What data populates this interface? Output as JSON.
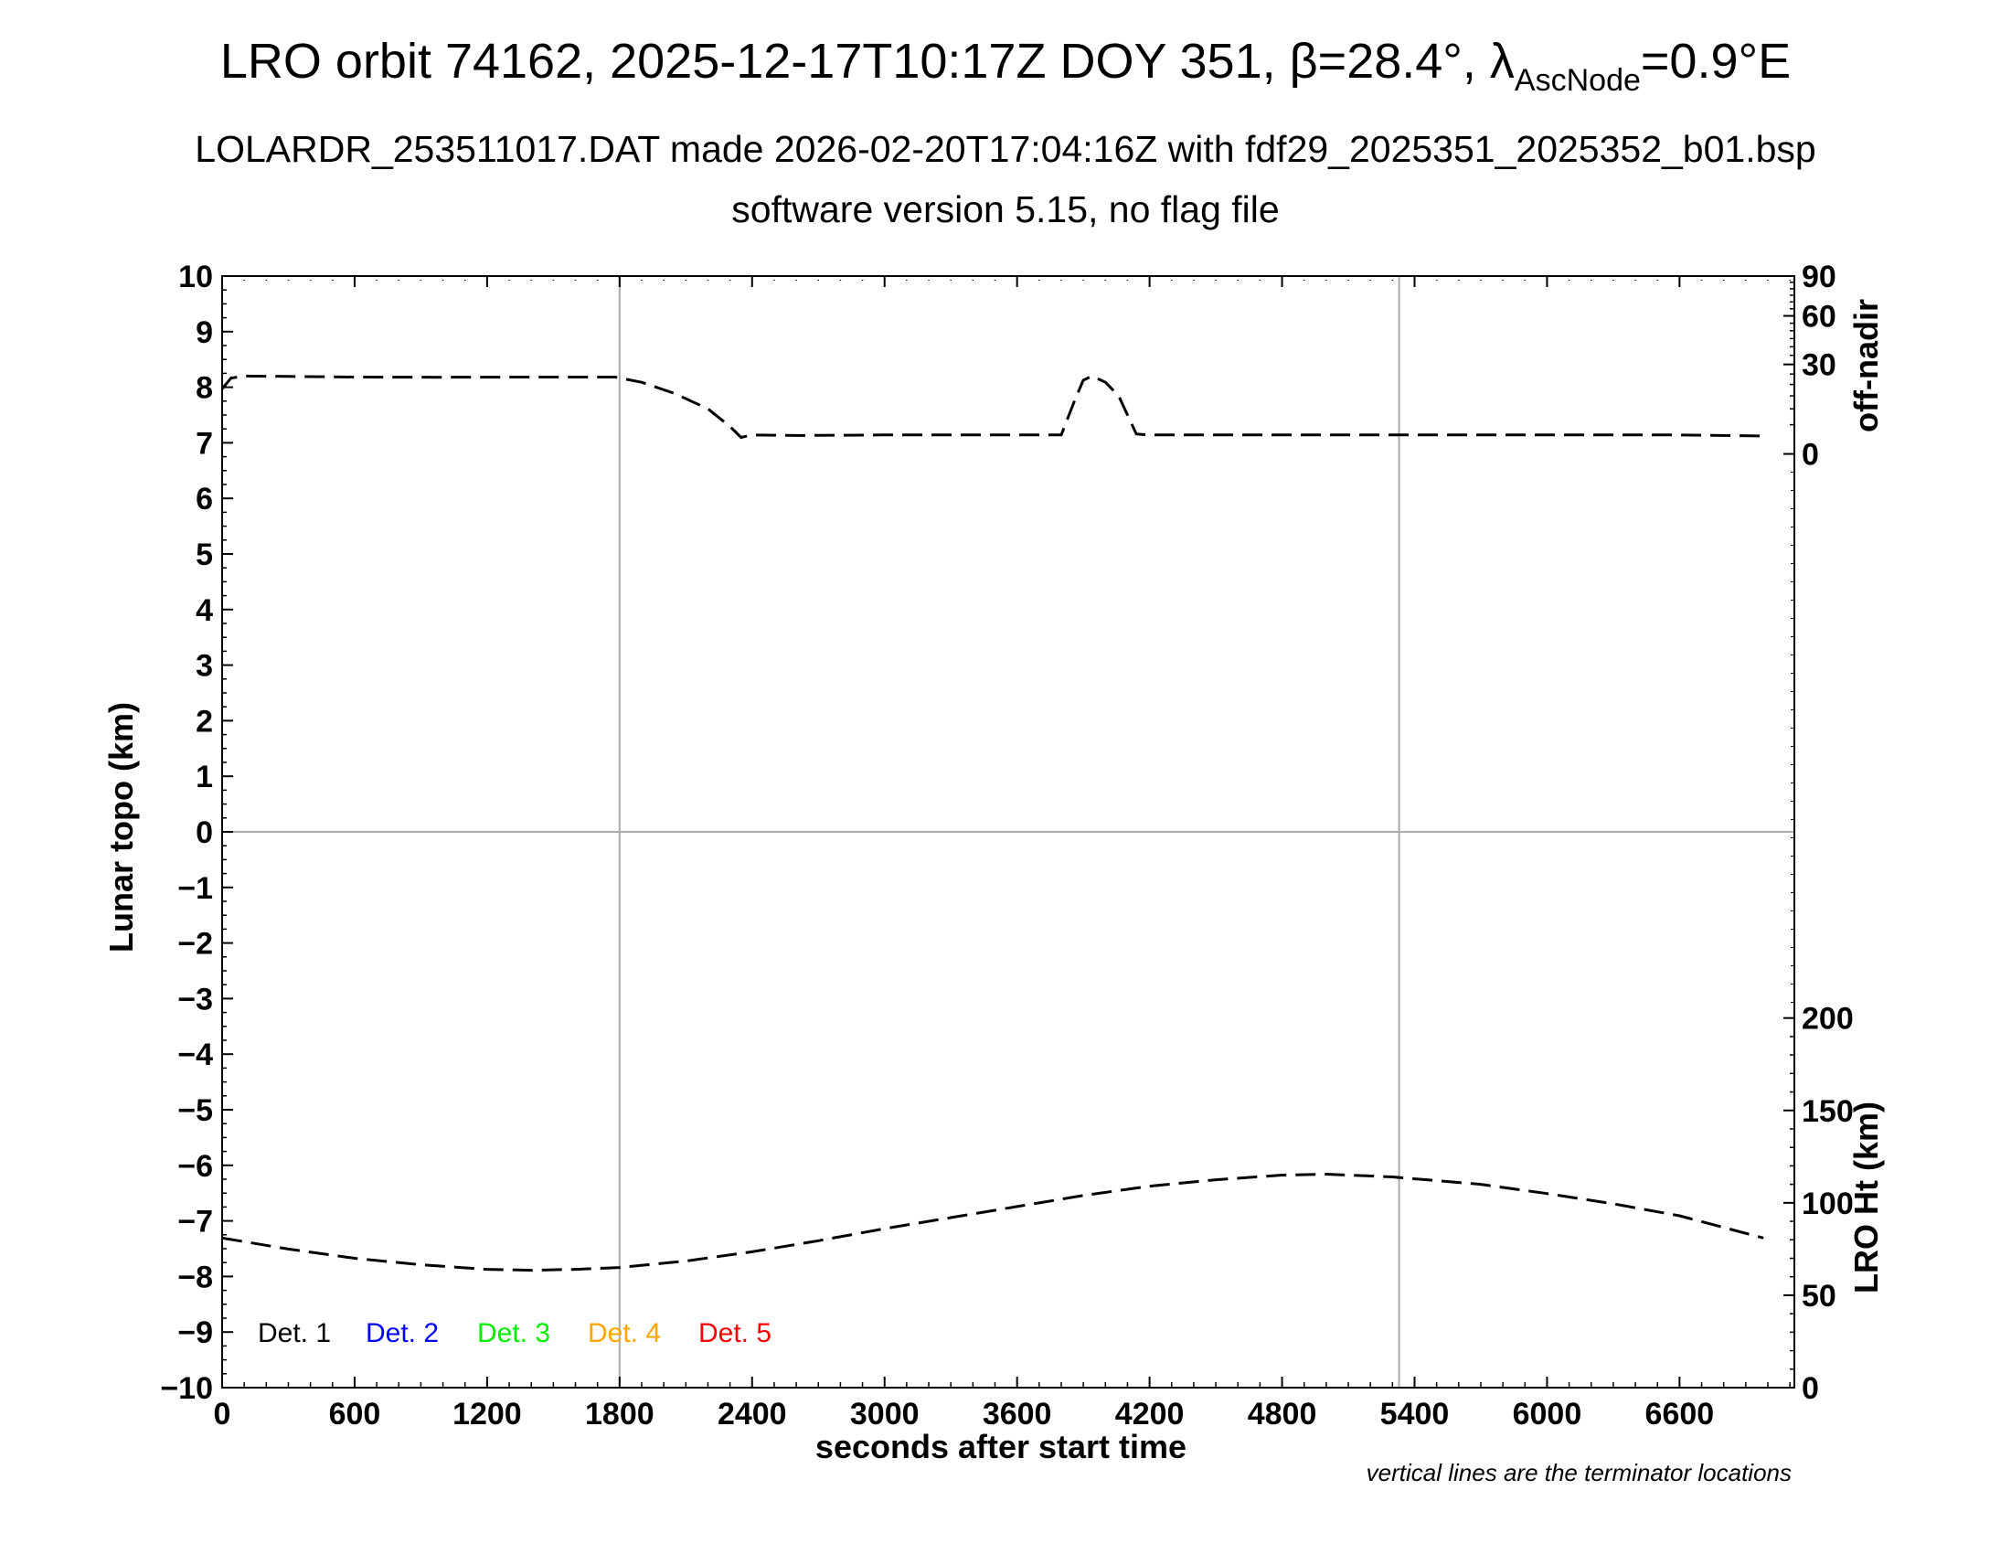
{
  "header": {
    "title_prefix": "LRO orbit 74162, 2025-12-17T10:17Z DOY 351, ",
    "beta_symbol": "β",
    "beta_value": "=28.4°, ",
    "lambda_symbol": "λ",
    "lambda_sub": "AscNode",
    "lambda_value": "=0.9°E",
    "subtitle1": "LOLARDR_253511017.DAT made 2026-02-20T17:04:16Z with fdf29_2025351_2025352_b01.bsp",
    "subtitle2": "software version 5.15, no flag file"
  },
  "footnote": "vertical lines are the terminator locations",
  "chart_data": {
    "type": "line",
    "xlabel": "seconds after start time",
    "ylabel_left": "Lunar topo (km)",
    "ylabel_right_top": "off-nadir",
    "ylabel_right_bottom": "LRO Ht (km)",
    "xlim": [
      0,
      7120
    ],
    "ylim": [
      -10,
      10
    ],
    "x_ticks": [
      "0",
      "600",
      "1200",
      "1800",
      "2400",
      "3000",
      "3600",
      "4200",
      "4800",
      "5400",
      "6000",
      "6600"
    ],
    "x_tick_values": [
      0,
      600,
      1200,
      1800,
      2400,
      3000,
      3600,
      4200,
      4800,
      5400,
      6000,
      6600
    ],
    "y_ticks": [
      "10",
      "9",
      "8",
      "7",
      "6",
      "5",
      "4",
      "3",
      "2",
      "1",
      "0",
      "−1",
      "−2",
      "−3",
      "−4",
      "−5",
      "−6",
      "−7",
      "−8",
      "−9",
      "−10"
    ],
    "y_tick_values": [
      10,
      9,
      8,
      7,
      6,
      5,
      4,
      3,
      2,
      1,
      0,
      -1,
      -2,
      -3,
      -4,
      -5,
      -6,
      -7,
      -8,
      -9,
      -10
    ],
    "right_top_ticks": [
      "90",
      "60",
      "30",
      "0"
    ],
    "right_top_tick_values": [
      90,
      60,
      30,
      0
    ],
    "right_bottom_ticks": [
      "200",
      "150",
      "100",
      "50",
      "0"
    ],
    "right_bottom_tick_values": [
      200,
      150,
      100,
      50,
      0
    ],
    "terminator_x": [
      1800,
      5330
    ],
    "zero_line_y": 0,
    "legend": [
      {
        "label": "Det. 1",
        "color": "#000000"
      },
      {
        "label": "Det. 2",
        "color": "#0000ff"
      },
      {
        "label": "Det. 3",
        "color": "#00ee00"
      },
      {
        "label": "Det. 4",
        "color": "#ffa500"
      },
      {
        "label": "Det. 5",
        "color": "#ff0000"
      }
    ],
    "series": [
      {
        "axis": "off-nadir",
        "x": [
          0,
          40,
          100,
          300,
          600,
          1000,
          1400,
          1780,
          1900,
          2050,
          2200,
          2300,
          2350,
          2400,
          2600,
          3000,
          3400,
          3800,
          3860,
          3900,
          3940,
          4000,
          4060,
          4100,
          4140,
          4200,
          4600,
          5000,
          5400,
          5800,
          6200,
          6600,
          6980
        ],
        "y": [
          18,
          23,
          24,
          23.8,
          23.5,
          23.4,
          23.5,
          23.5,
          21,
          16,
          10,
          4.5,
          2,
          2.5,
          2.4,
          2.5,
          2.5,
          2.5,
          13,
          22,
          24,
          21,
          15,
          8,
          2.7,
          2.5,
          2.5,
          2.5,
          2.5,
          2.5,
          2.5,
          2.5,
          2.3
        ]
      },
      {
        "axis": "LRO Ht (km)",
        "x": [
          0,
          300,
          600,
          900,
          1200,
          1400,
          1600,
          1800,
          2100,
          2400,
          2700,
          3000,
          3300,
          3600,
          3900,
          4200,
          4500,
          4800,
          5000,
          5300,
          5700,
          6000,
          6300,
          6600,
          6980
        ],
        "y": [
          81,
          75,
          70,
          66.5,
          64,
          63.5,
          64,
          65,
          68.5,
          73.5,
          79.5,
          86,
          92,
          98,
          104,
          109,
          112.5,
          115,
          115.5,
          114,
          110,
          105,
          99.5,
          93,
          81
        ]
      }
    ]
  }
}
